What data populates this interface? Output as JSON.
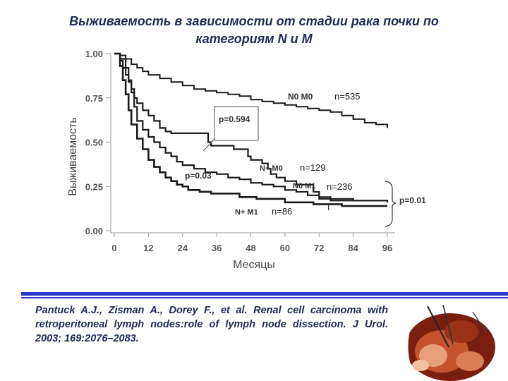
{
  "slide": {
    "title_line1": "Выживаемость в зависимости от стадии рака почки по",
    "title_line2": "категориям N и M",
    "citation": "Pantuck A.J., Zisman A., Dorey F., et al. Renal cell carcinoma with retroperitoneal lymph nodes:role of lymph node dissection. J Urol. 2003; 169:2076–2083.",
    "accent_color": "#2b38c8",
    "text_color": "#1f2a55"
  },
  "chart_data": {
    "type": "line",
    "title": "",
    "xlabel": "Месяцы",
    "ylabel": "Выживаемость",
    "xlim": [
      0,
      96
    ],
    "ylim": [
      0,
      1
    ],
    "x_ticks": [
      "0",
      "12",
      "24",
      "36",
      "48",
      "60",
      "72",
      "84",
      "96"
    ],
    "y_ticks": [
      "0.00",
      "0.25",
      "0.50",
      "0.75",
      "1.00"
    ],
    "y_tick_values": [
      0,
      0.25,
      0.5,
      0.75,
      1
    ],
    "series": [
      {
        "name": "N0 M0",
        "n_label": "n=535",
        "points": [
          [
            0,
            1
          ],
          [
            2,
            0.99
          ],
          [
            4,
            0.97
          ],
          [
            6,
            0.94
          ],
          [
            8,
            0.92
          ],
          [
            10,
            0.9
          ],
          [
            12,
            0.88
          ],
          [
            16,
            0.86
          ],
          [
            20,
            0.84
          ],
          [
            24,
            0.82
          ],
          [
            28,
            0.8
          ],
          [
            32,
            0.79
          ],
          [
            36,
            0.78
          ],
          [
            40,
            0.77
          ],
          [
            44,
            0.76
          ],
          [
            48,
            0.74
          ],
          [
            52,
            0.73
          ],
          [
            56,
            0.72
          ],
          [
            60,
            0.71
          ],
          [
            64,
            0.7
          ],
          [
            68,
            0.69
          ],
          [
            72,
            0.68
          ],
          [
            76,
            0.67
          ],
          [
            80,
            0.65
          ],
          [
            84,
            0.63
          ],
          [
            88,
            0.61
          ],
          [
            92,
            0.6
          ],
          [
            96,
            0.58
          ]
        ]
      },
      {
        "name": "N+ M0",
        "n_label": "n=129",
        "points": [
          [
            0,
            1
          ],
          [
            2,
            0.96
          ],
          [
            3,
            0.92
          ],
          [
            4,
            0.88
          ],
          [
            5,
            0.84
          ],
          [
            6,
            0.8
          ],
          [
            7,
            0.75
          ],
          [
            8,
            0.72
          ],
          [
            10,
            0.68
          ],
          [
            12,
            0.65
          ],
          [
            14,
            0.62
          ],
          [
            16,
            0.58
          ],
          [
            18,
            0.56
          ],
          [
            20,
            0.55
          ],
          [
            32,
            0.55
          ],
          [
            33,
            0.5
          ],
          [
            34,
            0.48
          ],
          [
            40,
            0.48
          ],
          [
            42,
            0.46
          ],
          [
            46,
            0.46
          ],
          [
            47,
            0.42
          ],
          [
            48,
            0.4
          ],
          [
            52,
            0.38
          ],
          [
            54,
            0.35
          ],
          [
            55,
            0.32
          ],
          [
            57,
            0.3
          ],
          [
            60,
            0.28
          ],
          [
            64,
            0.26
          ],
          [
            70,
            0.22
          ],
          [
            72,
            0.18
          ],
          [
            76,
            0.17
          ],
          [
            96,
            0.16
          ]
        ]
      },
      {
        "name": "N0 M1",
        "n_label": "n=236",
        "points": [
          [
            0,
            1
          ],
          [
            2,
            0.97
          ],
          [
            4,
            0.92
          ],
          [
            5,
            0.85
          ],
          [
            6,
            0.78
          ],
          [
            7,
            0.7
          ],
          [
            8,
            0.62
          ],
          [
            10,
            0.57
          ],
          [
            12,
            0.53
          ],
          [
            14,
            0.5
          ],
          [
            16,
            0.47
          ],
          [
            18,
            0.44
          ],
          [
            20,
            0.42
          ],
          [
            22,
            0.39
          ],
          [
            24,
            0.37
          ],
          [
            28,
            0.35
          ],
          [
            32,
            0.33
          ],
          [
            36,
            0.32
          ],
          [
            40,
            0.3
          ],
          [
            44,
            0.29
          ],
          [
            48,
            0.27
          ],
          [
            52,
            0.26
          ],
          [
            56,
            0.25
          ],
          [
            60,
            0.23
          ],
          [
            64,
            0.22
          ],
          [
            68,
            0.2
          ],
          [
            72,
            0.19
          ],
          [
            76,
            0.18
          ],
          [
            84,
            0.17
          ],
          [
            96,
            0.16
          ]
        ]
      },
      {
        "name": "N+ M1",
        "n_label": "n=86",
        "points": [
          [
            0,
            1
          ],
          [
            2,
            0.93
          ],
          [
            3,
            0.85
          ],
          [
            4,
            0.77
          ],
          [
            5,
            0.68
          ],
          [
            6,
            0.6
          ],
          [
            8,
            0.52
          ],
          [
            10,
            0.46
          ],
          [
            12,
            0.4
          ],
          [
            14,
            0.36
          ],
          [
            16,
            0.33
          ],
          [
            18,
            0.3
          ],
          [
            20,
            0.28
          ],
          [
            22,
            0.26
          ],
          [
            24,
            0.25
          ],
          [
            26,
            0.23
          ],
          [
            30,
            0.22
          ],
          [
            34,
            0.21
          ],
          [
            40,
            0.21
          ],
          [
            44,
            0.19
          ],
          [
            50,
            0.18
          ],
          [
            60,
            0.16
          ],
          [
            70,
            0.15
          ],
          [
            80,
            0.14
          ],
          [
            96,
            0.14
          ]
        ]
      }
    ],
    "annotations": {
      "p1": "p=0.594",
      "p2": "p=0.03",
      "p3": "p=0.01",
      "n_plus_m0_label": "N+ M0",
      "tick_mark": "I"
    }
  }
}
